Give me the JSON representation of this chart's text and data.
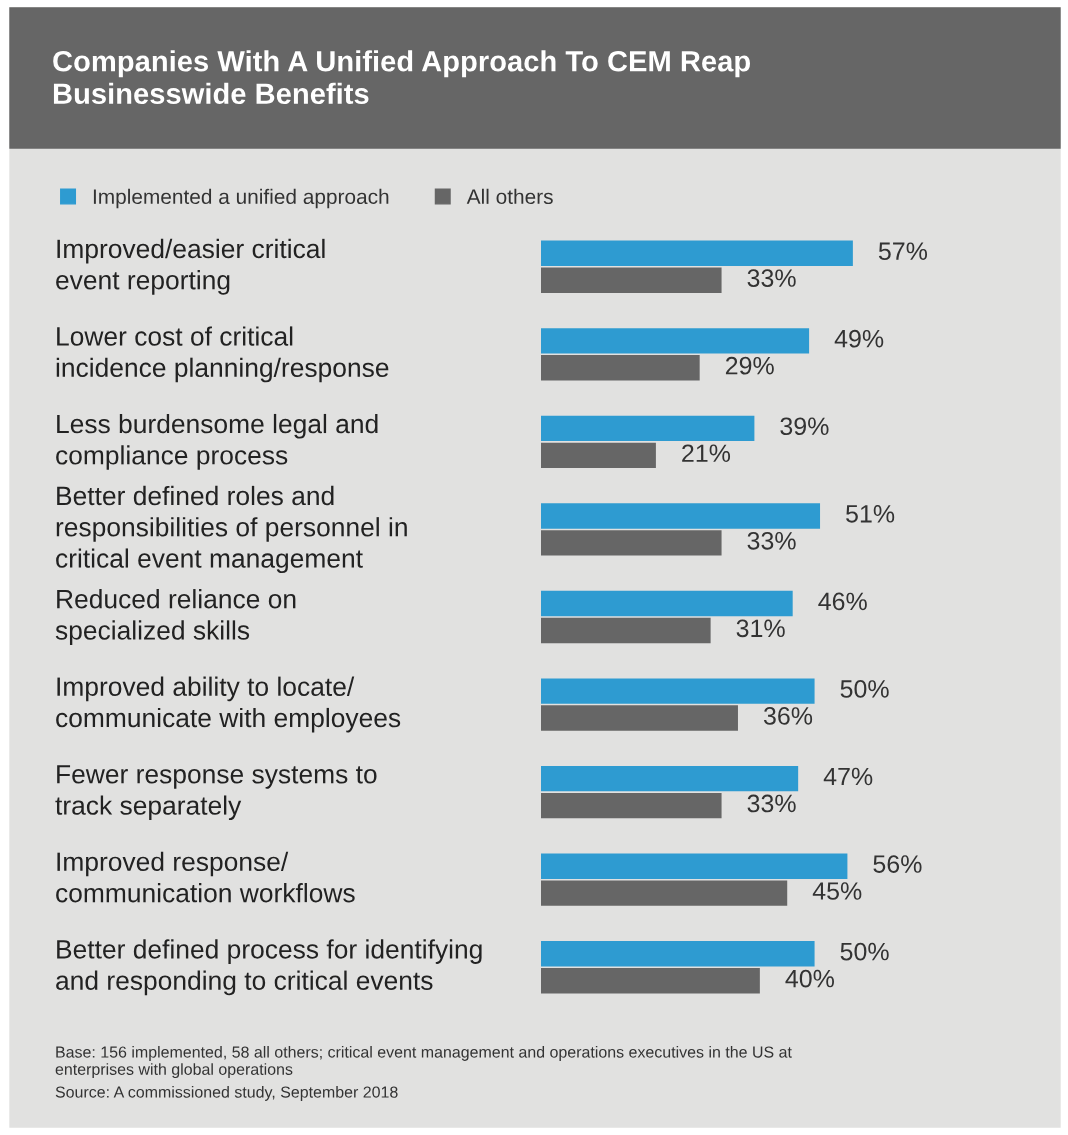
{
  "chart_data": {
    "type": "bar",
    "orientation": "horizontal",
    "title": "Companies With A Unified Approach To CEM Reap\nBusinesswide Benefits",
    "categories": [
      "Improved/easier critical\nevent reporting",
      "Lower cost of critical\nincidence planning/response",
      "Less burdensome legal and\ncompliance process",
      "Better defined roles and\nresponsibilities of personnel in\ncritical event management",
      "Reduced reliance on\nspecialized skills",
      "Improved ability to locate/\ncommunicate with employees",
      "Fewer response systems to\ntrack separately",
      "Improved response/\ncommunication workflows",
      "Better defined process for identifying\nand responding to critical events"
    ],
    "series": [
      {
        "name": "Implemented a unified approach",
        "color": "#2e9bd1",
        "values": [
          57,
          49,
          39,
          51,
          46,
          50,
          47,
          56,
          50
        ],
        "value_labels": [
          "57%",
          "49%",
          "39%",
          "51%",
          "46%",
          "50%",
          "47%",
          "56%",
          "50%"
        ]
      },
      {
        "name": "All others",
        "color": "#666666",
        "values": [
          33,
          29,
          21,
          33,
          31,
          36,
          33,
          45,
          40
        ],
        "value_labels": [
          "33%",
          "29%",
          "21%",
          "33%",
          "31%",
          "36%",
          "33%",
          "45%",
          "40%"
        ]
      }
    ],
    "legend": "top left",
    "annotations": [
      "Base: 156 implemented, 58 all others; critical event management and operations executives in the US at\nenterprises with global operations",
      "Source: A commissioned study, September 2018"
    ]
  }
}
